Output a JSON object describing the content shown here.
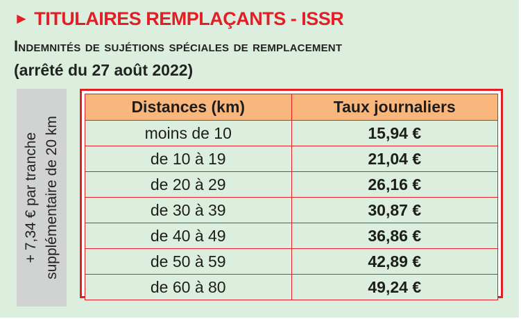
{
  "header": {
    "arrow_glyph": "►",
    "title": "TITULAIRES REMPLAÇANTS - ISSR",
    "subtitle": "Indemnités de sujétions spéciales de remplacement",
    "date": "(arrêté du 27 août 2022)"
  },
  "sidebar": {
    "line1": "+ 7,34 € par tranche",
    "line2": "supplémentaire de 20 km"
  },
  "table": {
    "headers": [
      "Distances (km)",
      "Taux journaliers"
    ],
    "rows": [
      {
        "distance": "moins de 10",
        "rate": "15,94 €"
      },
      {
        "distance": "de 10 à 19",
        "rate": "21,04 €"
      },
      {
        "distance": "de 20 à 29",
        "rate": "26,16 €"
      },
      {
        "distance": "de 30 à 39",
        "rate": "30,87 €"
      },
      {
        "distance": "de 40 à 49",
        "rate": "36,86 €"
      },
      {
        "distance": "de 50 à 59",
        "rate": "42,89 €"
      },
      {
        "distance": "de 60 à 80",
        "rate": "49,24 €"
      }
    ]
  },
  "colors": {
    "accent_red": "#e41e26",
    "header_orange": "#f9b77e",
    "panel_green": "#dceedd",
    "sidebar_grey": "#d0d3d1"
  }
}
